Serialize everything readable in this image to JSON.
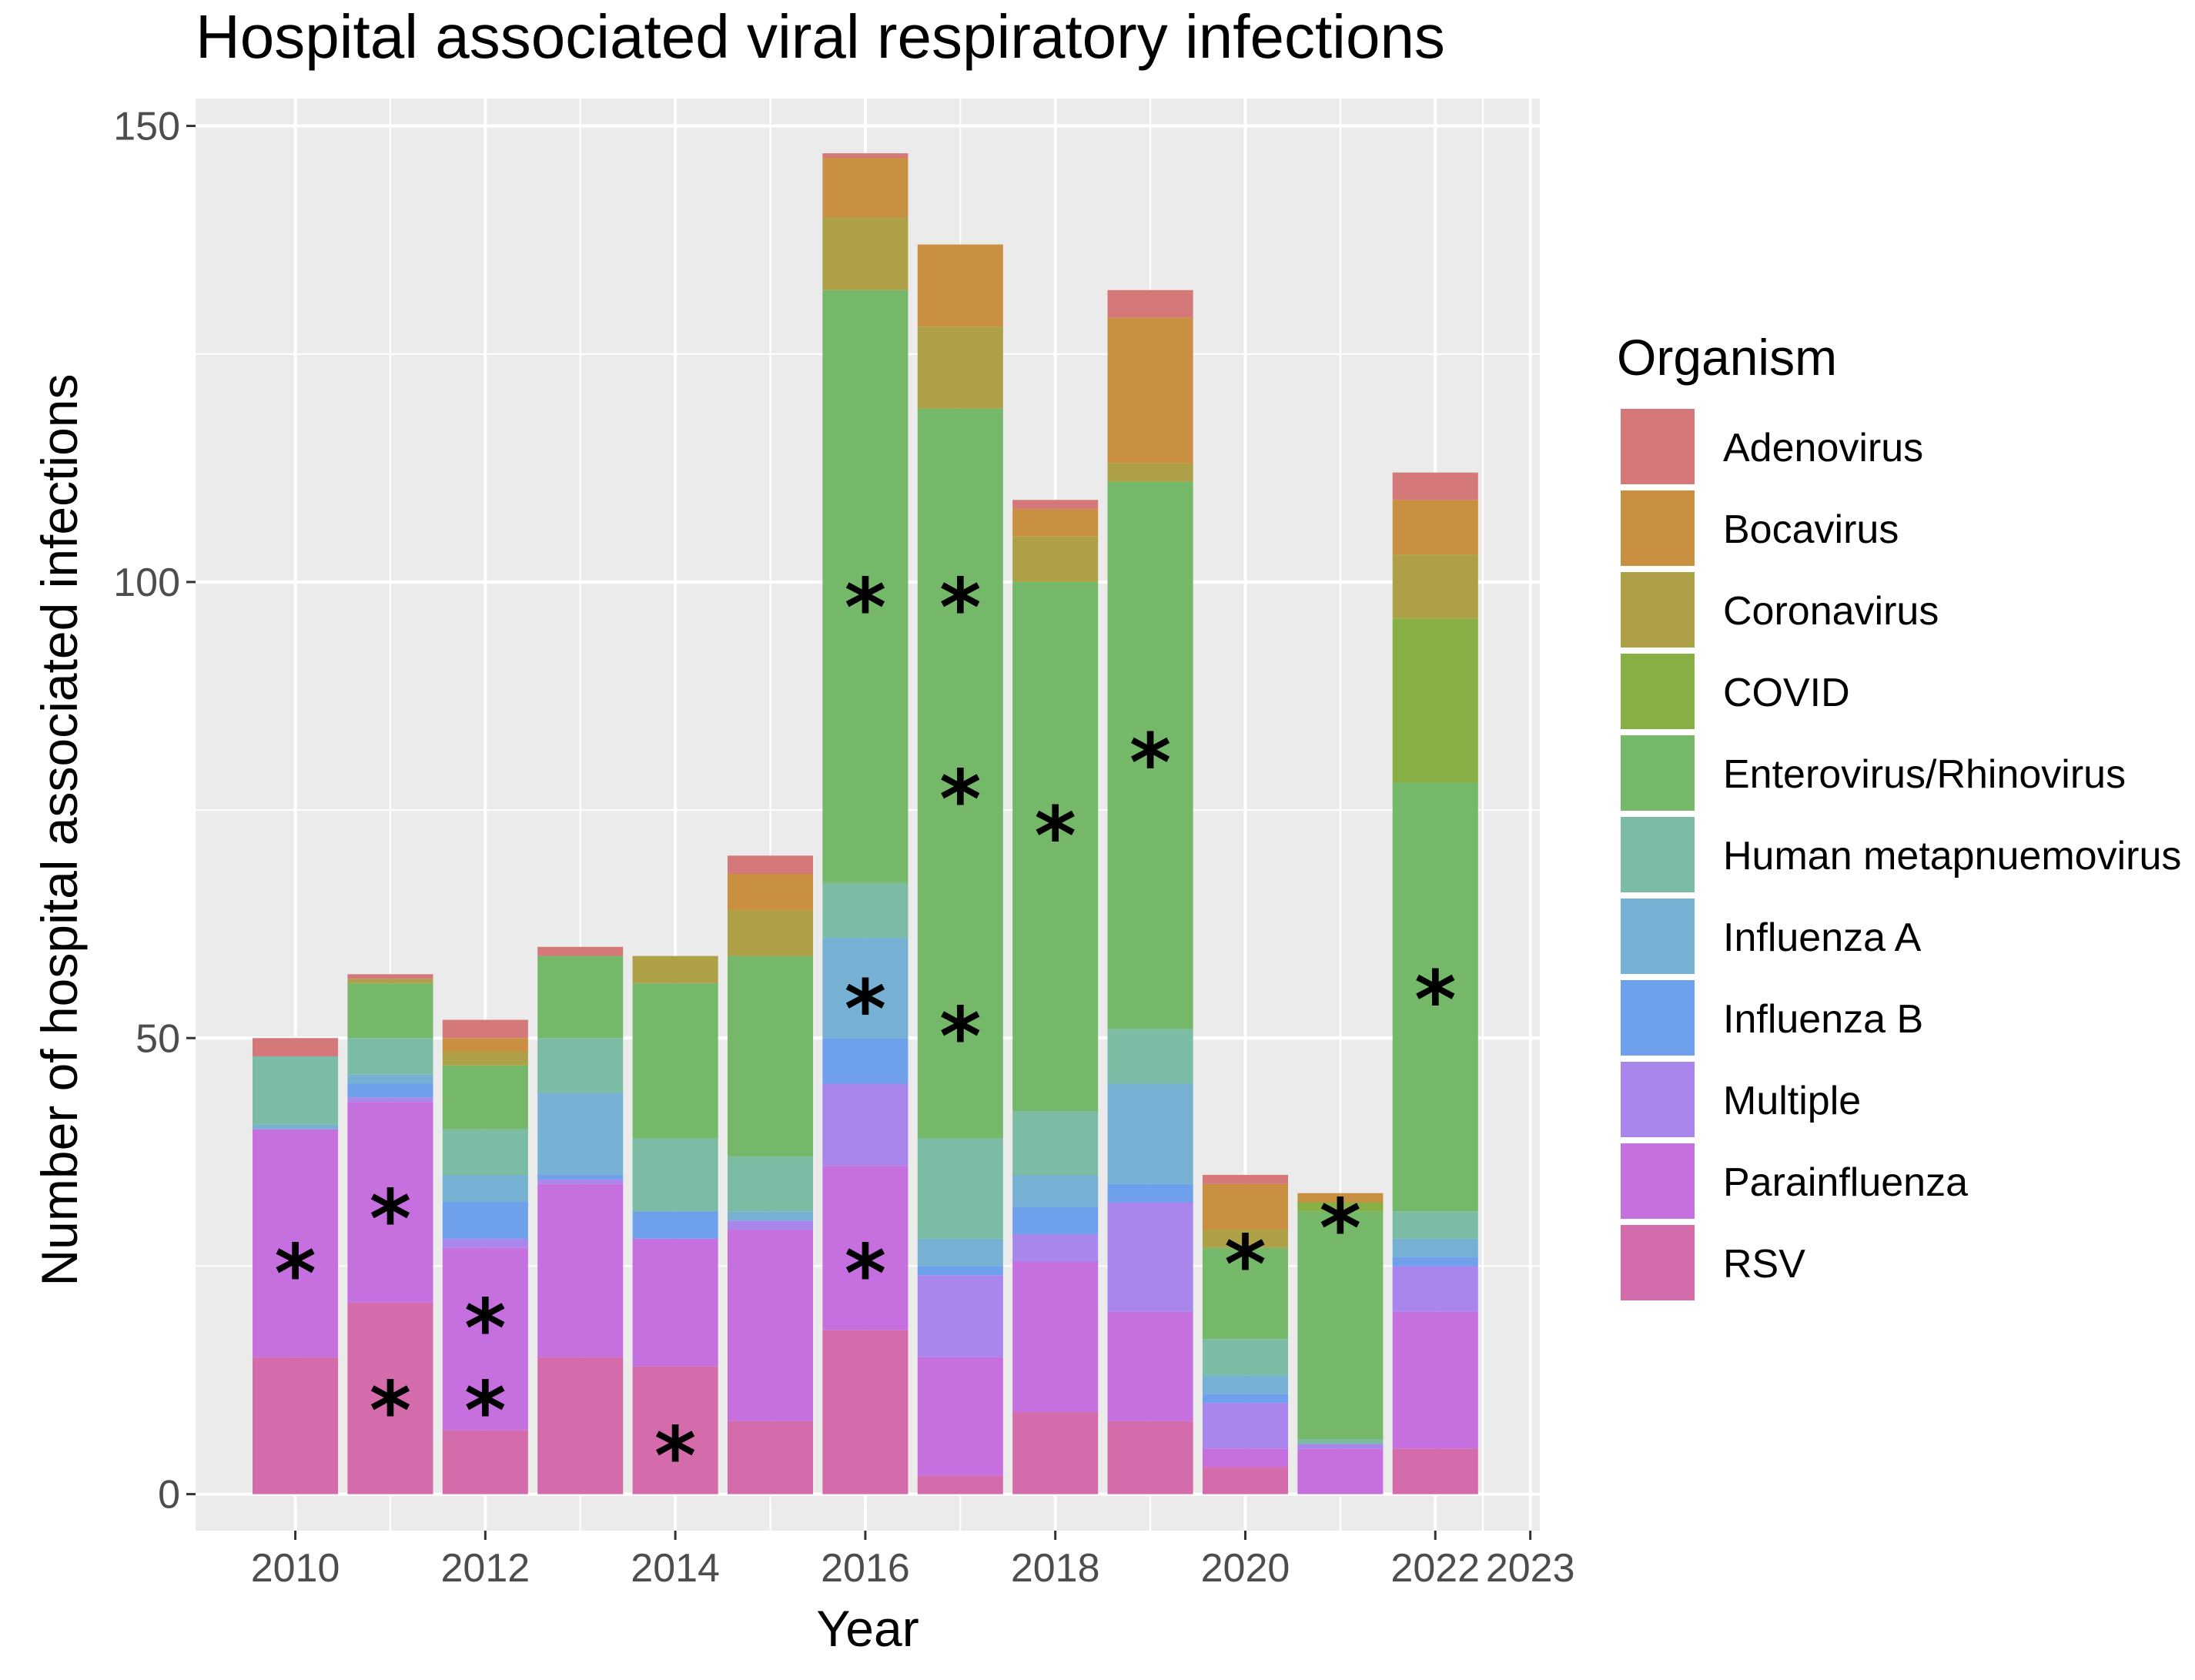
{
  "chart_data": {
    "type": "bar",
    "stacked": true,
    "title": "Hospital associated viral respiratory infections",
    "xlabel": "Year",
    "ylabel": "Number of hospital associated infections",
    "ylim": [
      -4,
      153
    ],
    "xlim": [
      2008.95,
      2023.1
    ],
    "y_ticks": [
      0,
      50,
      100,
      150
    ],
    "x_ticks": [
      2010,
      2012,
      2014,
      2016,
      2018,
      2020,
      2022,
      2023
    ],
    "grid": true,
    "legend": {
      "title": "Organism",
      "position": "right"
    },
    "organisms": [
      {
        "name": "Adenovirus",
        "color": "#D4787A"
      },
      {
        "name": "Bocavirus",
        "color": "#C89040"
      },
      {
        "name": "Coronavirus",
        "color": "#ADA046"
      },
      {
        "name": "COVID",
        "color": "#88AF46"
      },
      {
        "name": "Enterovirus/Rhinovirus",
        "color": "#76B86A"
      },
      {
        "name": "Human metapnuemovirus",
        "color": "#7DBCA4"
      },
      {
        "name": "Influenza A",
        "color": "#76B1D4"
      },
      {
        "name": "Influenza B",
        "color": "#6FA0EC"
      },
      {
        "name": "Multiple",
        "color": "#A886EC"
      },
      {
        "name": "Parainfluenza",
        "color": "#C670E0"
      },
      {
        "name": "RSV",
        "color": "#D46CAC"
      }
    ],
    "stack_order": [
      "RSV",
      "Parainfluenza",
      "Multiple",
      "Influenza B",
      "Influenza A",
      "Human metapnuemovirus",
      "Enterovirus/Rhinovirus",
      "COVID",
      "Coronavirus",
      "Bocavirus",
      "Adenovirus"
    ],
    "years": [
      {
        "year": 2010,
        "counts": {
          "RSV": 15,
          "Parainfluenza": 25,
          "Multiple": 0,
          "Influenza B": 0,
          "Influenza A": 0.5,
          "Human metapnuemovirus": 7.5,
          "Enterovirus/Rhinovirus": 0,
          "COVID": 0,
          "Coronavirus": 0,
          "Bocavirus": 0,
          "Adenovirus": 2
        }
      },
      {
        "year": 2011,
        "counts": {
          "RSV": 21,
          "Parainfluenza": 22,
          "Multiple": 0.5,
          "Influenza B": 1.5,
          "Influenza A": 1,
          "Human metapnuemovirus": 4,
          "Enterovirus/Rhinovirus": 6,
          "COVID": 0,
          "Coronavirus": 0.5,
          "Bocavirus": 0,
          "Adenovirus": 0.5
        }
      },
      {
        "year": 2012,
        "counts": {
          "RSV": 7,
          "Parainfluenza": 20,
          "Multiple": 1,
          "Influenza B": 4,
          "Influenza A": 3,
          "Human metapnuemovirus": 5,
          "Enterovirus/Rhinovirus": 7,
          "COVID": 0,
          "Coronavirus": 1.5,
          "Bocavirus": 1.5,
          "Adenovirus": 2
        }
      },
      {
        "year": 2013,
        "counts": {
          "RSV": 15,
          "Parainfluenza": 19,
          "Multiple": 0.5,
          "Influenza B": 0.5,
          "Influenza A": 9,
          "Human metapnuemovirus": 6,
          "Enterovirus/Rhinovirus": 9,
          "COVID": 0,
          "Coronavirus": 0,
          "Bocavirus": 0,
          "Adenovirus": 1
        }
      },
      {
        "year": 2014,
        "counts": {
          "RSV": 14,
          "Parainfluenza": 14,
          "Multiple": 0,
          "Influenza B": 3,
          "Influenza A": 0,
          "Human metapnuemovirus": 8,
          "Enterovirus/Rhinovirus": 17,
          "COVID": 0,
          "Coronavirus": 3,
          "Bocavirus": 0,
          "Adenovirus": 0
        }
      },
      {
        "year": 2015,
        "counts": {
          "RSV": 8,
          "Parainfluenza": 21,
          "Multiple": 1,
          "Influenza B": 0,
          "Influenza A": 1,
          "Human metapnuemovirus": 6,
          "Enterovirus/Rhinovirus": 22,
          "COVID": 0,
          "Coronavirus": 5,
          "Bocavirus": 4,
          "Adenovirus": 2
        }
      },
      {
        "year": 2016,
        "counts": {
          "RSV": 18,
          "Parainfluenza": 18,
          "Multiple": 9,
          "Influenza B": 5,
          "Influenza A": 11,
          "Human metapnuemovirus": 6,
          "Enterovirus/Rhinovirus": 65,
          "COVID": 0,
          "Coronavirus": 8,
          "Bocavirus": 6.5,
          "Adenovirus": 0.5
        }
      },
      {
        "year": 2017,
        "counts": {
          "RSV": 2,
          "Parainfluenza": 13,
          "Multiple": 9,
          "Influenza B": 1,
          "Influenza A": 3,
          "Human metapnuemovirus": 11,
          "Enterovirus/Rhinovirus": 80,
          "COVID": 0,
          "Coronavirus": 9,
          "Bocavirus": 9,
          "Adenovirus": 0
        }
      },
      {
        "year": 2018,
        "counts": {
          "RSV": 9,
          "Parainfluenza": 16.5,
          "Multiple": 3,
          "Influenza B": 3,
          "Influenza A": 3.5,
          "Human metapnuemovirus": 7,
          "Enterovirus/Rhinovirus": 58,
          "COVID": 0,
          "Coronavirus": 5,
          "Bocavirus": 3,
          "Adenovirus": 1
        }
      },
      {
        "year": 2019,
        "counts": {
          "RSV": 8,
          "Parainfluenza": 12,
          "Multiple": 12,
          "Influenza B": 2,
          "Influenza A": 11,
          "Human metapnuemovirus": 6,
          "Enterovirus/Rhinovirus": 60,
          "COVID": 0,
          "Coronavirus": 2,
          "Bocavirus": 16,
          "Adenovirus": 3
        }
      },
      {
        "year": 2020,
        "counts": {
          "RSV": 3,
          "Parainfluenza": 2,
          "Multiple": 5,
          "Influenza B": 1,
          "Influenza A": 2,
          "Human metapnuemovirus": 4,
          "Enterovirus/Rhinovirus": 10,
          "COVID": 0,
          "Coronavirus": 2,
          "Bocavirus": 5,
          "Adenovirus": 1
        }
      },
      {
        "year": 2021,
        "counts": {
          "RSV": 0,
          "Parainfluenza": 5,
          "Multiple": 0.5,
          "Influenza B": 0,
          "Influenza A": 0,
          "Human metapnuemovirus": 0.5,
          "Enterovirus/Rhinovirus": 25,
          "COVID": 1,
          "Coronavirus": 0,
          "Bocavirus": 1,
          "Adenovirus": 0
        }
      },
      {
        "year": 2022,
        "counts": {
          "RSV": 5,
          "Parainfluenza": 15,
          "Multiple": 5,
          "Influenza B": 1,
          "Influenza A": 2,
          "Human metapnuemovirus": 3,
          "Enterovirus/Rhinovirus": 47,
          "COVID": 18,
          "Coronavirus": 7,
          "Bocavirus": 6,
          "Adenovirus": 3
        }
      }
    ],
    "annotations": [
      {
        "text": "*",
        "x": 2010,
        "y": 26
      },
      {
        "text": "*",
        "x": 2011,
        "y": 32
      },
      {
        "text": "*",
        "x": 2011,
        "y": 11
      },
      {
        "text": "*",
        "x": 2012,
        "y": 20
      },
      {
        "text": "*",
        "x": 2012,
        "y": 11
      },
      {
        "text": "*",
        "x": 2014,
        "y": 6
      },
      {
        "text": "*",
        "x": 2016,
        "y": 99
      },
      {
        "text": "*",
        "x": 2016,
        "y": 55
      },
      {
        "text": "*",
        "x": 2016,
        "y": 26
      },
      {
        "text": "*",
        "x": 2017,
        "y": 99
      },
      {
        "text": "*",
        "x": 2017,
        "y": 78
      },
      {
        "text": "*",
        "x": 2017,
        "y": 52
      },
      {
        "text": "*",
        "x": 2018,
        "y": 74
      },
      {
        "text": "*",
        "x": 2019,
        "y": 82
      },
      {
        "text": "*",
        "x": 2020,
        "y": 27
      },
      {
        "text": "*",
        "x": 2021,
        "y": 31
      },
      {
        "text": "*",
        "x": 2022,
        "y": 56
      }
    ]
  }
}
